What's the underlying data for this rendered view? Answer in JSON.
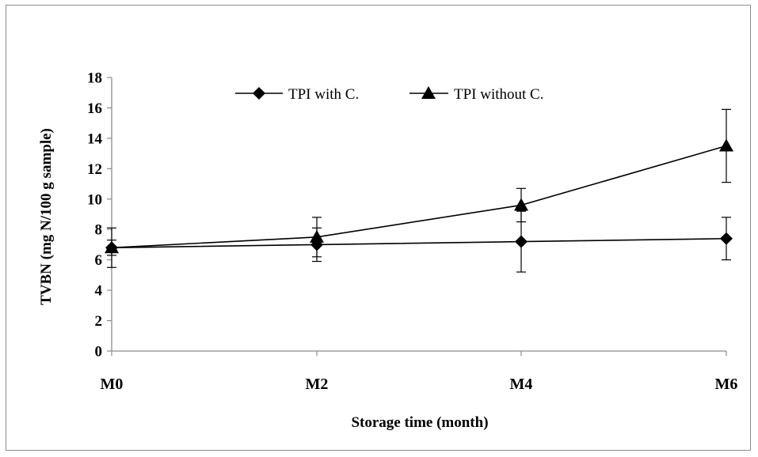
{
  "chart_data": {
    "type": "line",
    "categories": [
      "M0",
      "M2",
      "M4",
      "M6"
    ],
    "xlabel": "Storage time (month)",
    "ylabel": "TVBN (mg N/100 g sample)",
    "ylim": [
      0,
      18
    ],
    "yticks": [
      0,
      2,
      4,
      6,
      8,
      10,
      12,
      14,
      16,
      18
    ],
    "grid": false,
    "legend_position": "top",
    "series": [
      {
        "name": "TPI with C.",
        "marker": "diamond",
        "values": [
          6.8,
          7.0,
          7.2,
          7.4
        ],
        "error": [
          1.3,
          1.1,
          2.0,
          1.4
        ]
      },
      {
        "name": "TPI without C.",
        "marker": "triangle",
        "values": [
          6.8,
          7.5,
          9.6,
          13.5
        ],
        "error": [
          0.5,
          1.3,
          1.1,
          2.4
        ]
      }
    ]
  }
}
